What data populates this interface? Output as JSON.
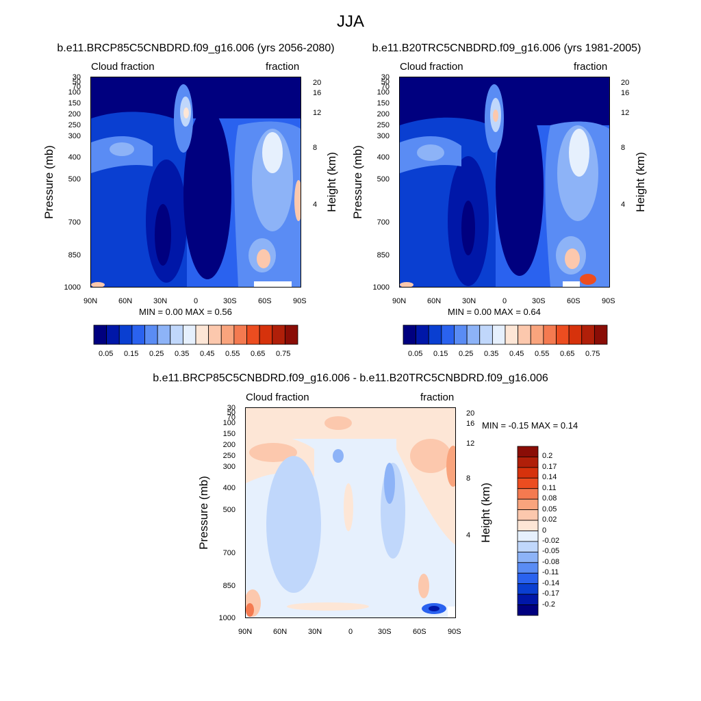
{
  "page_title": "JJA",
  "panels": [
    {
      "title": "b.e11.BRCP85C5CNBDRD.f09_g16.006 (yrs 2056-2080)",
      "left_label": "Cloud fraction",
      "right_label": "fraction",
      "min_max": "MIN =   0.00  MAX =   0.56"
    },
    {
      "title": "b.e11.B20TRC5CNBDRD.f09_g16.006 (yrs 1981-2005)",
      "left_label": "Cloud fraction",
      "right_label": "fraction",
      "min_max": "MIN =   0.00  MAX =   0.64"
    },
    {
      "title": "b.e11.BRCP85C5CNBDRD.f09_g16.006 - b.e11.B20TRC5CNBDRD.f09_g16.006",
      "left_label": "Cloud fraction",
      "right_label": "fraction",
      "min_max": "MIN =  -0.15  MAX =   0.14"
    }
  ],
  "axes": {
    "ylabel": "Pressure (mb)",
    "ylabel_right": "Height (km)",
    "pressure_ticks": [
      "30",
      "50",
      "70",
      "100",
      "150",
      "200",
      "250",
      "300",
      "400",
      "500",
      "700",
      "850",
      "1000"
    ],
    "height_ticks": [
      "20",
      "16",
      "12",
      "8",
      "4"
    ],
    "lat_ticks": [
      "90N",
      "60N",
      "30N",
      "0",
      "30S",
      "60S",
      "90S"
    ]
  },
  "colorbars": {
    "cloud": {
      "labels": [
        "0.05",
        "0.15",
        "0.25",
        "0.35",
        "0.45",
        "0.55",
        "0.65",
        "0.75"
      ],
      "colors": [
        "#00007f",
        "#0017a8",
        "#0a3fd1",
        "#2a62ef",
        "#5a8cf4",
        "#8db3f7",
        "#c0d7fb",
        "#e6f0fd",
        "#fde6d6",
        "#fcc8ad",
        "#f9a47d",
        "#f47a50",
        "#ec4d20",
        "#d6320c",
        "#b01f09",
        "#8a0d06"
      ]
    },
    "diff": {
      "labels": [
        "0.2",
        "0.17",
        "0.14",
        "0.11",
        "0.08",
        "0.05",
        "0.02",
        "0",
        "-0.02",
        "-0.05",
        "-0.08",
        "-0.11",
        "-0.14",
        "-0.17",
        "-0.2"
      ],
      "colors": [
        "#8a0d06",
        "#b01f09",
        "#d6320c",
        "#ec4d20",
        "#f47a50",
        "#f9a47d",
        "#fcc8ad",
        "#fde6d6",
        "#e6f0fd",
        "#c0d7fb",
        "#8db3f7",
        "#5a8cf4",
        "#2a62ef",
        "#0a3fd1",
        "#0017a8",
        "#00007f"
      ]
    }
  },
  "chart_data": [
    {
      "type": "heatmap",
      "title": "b.e11.BRCP85C5CNBDRD.f09_g16.006 (yrs 2056-2080)",
      "variable": "Cloud fraction",
      "units": "fraction",
      "xlabel": "",
      "ylabel": "Pressure (mb)",
      "ylabel_right": "Height (km)",
      "x_ticks": [
        "90N",
        "60N",
        "30N",
        "0",
        "30S",
        "60S",
        "90S"
      ],
      "y_ticks": [
        30,
        50,
        70,
        100,
        150,
        200,
        250,
        300,
        400,
        500,
        700,
        850,
        1000
      ],
      "y_range": [
        1000,
        30
      ],
      "min": 0.0,
      "max": 0.56
    },
    {
      "type": "heatmap",
      "title": "b.e11.B20TRC5CNBDRD.f09_g16.006 (yrs 1981-2005)",
      "variable": "Cloud fraction",
      "units": "fraction",
      "xlabel": "",
      "ylabel": "Pressure (mb)",
      "ylabel_right": "Height (km)",
      "x_ticks": [
        "90N",
        "60N",
        "30N",
        "0",
        "30S",
        "60S",
        "90S"
      ],
      "y_ticks": [
        30,
        50,
        70,
        100,
        150,
        200,
        250,
        300,
        400,
        500,
        700,
        850,
        1000
      ],
      "y_range": [
        1000,
        30
      ],
      "min": 0.0,
      "max": 0.64
    },
    {
      "type": "heatmap",
      "title": "b.e11.BRCP85C5CNBDRD.f09_g16.006 - b.e11.B20TRC5CNBDRD.f09_g16.006",
      "variable": "Cloud fraction",
      "units": "fraction",
      "xlabel": "",
      "ylabel": "Pressure (mb)",
      "ylabel_right": "Height (km)",
      "x_ticks": [
        "90N",
        "60N",
        "30N",
        "0",
        "30S",
        "60S",
        "90S"
      ],
      "y_ticks": [
        30,
        50,
        70,
        100,
        150,
        200,
        250,
        300,
        400,
        500,
        700,
        850,
        1000
      ],
      "y_range": [
        1000,
        30
      ],
      "min": -0.15,
      "max": 0.14
    }
  ]
}
